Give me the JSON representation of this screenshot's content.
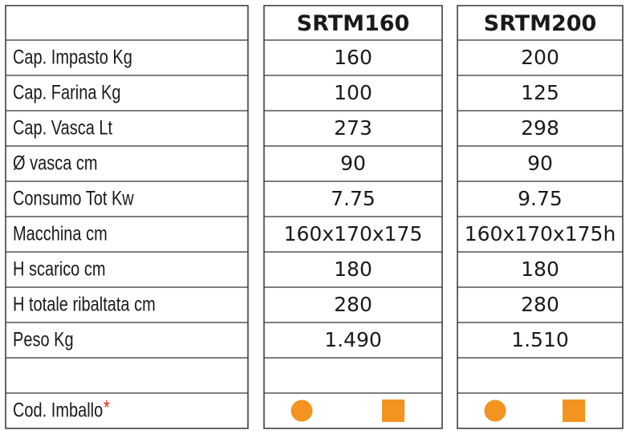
{
  "table": {
    "columns": [
      "SRTM160",
      "SRTM200"
    ],
    "rows": [
      {
        "label": "Cap. Impasto Kg",
        "values": [
          "160",
          "200"
        ]
      },
      {
        "label": "Cap. Farina Kg",
        "values": [
          "100",
          "125"
        ]
      },
      {
        "label": "Cap. Vasca Lt",
        "values": [
          "273",
          "298"
        ]
      },
      {
        "label": "Ø vasca cm",
        "values": [
          "90",
          "90"
        ]
      },
      {
        "label": "Consumo Tot Kw",
        "values": [
          "7.75",
          "9.75"
        ]
      },
      {
        "label": "Macchina cm",
        "values": [
          "160x170x175",
          "160x170x175h"
        ]
      },
      {
        "label": "H scarico cm",
        "values": [
          "180",
          "180"
        ]
      },
      {
        "label": "H totale ribaltata cm",
        "values": [
          "280",
          "280"
        ]
      },
      {
        "label": "Peso Kg",
        "values": [
          "1.490",
          "1.510"
        ]
      }
    ],
    "footer": {
      "label": "Cod. Imballo",
      "marker": "*"
    }
  }
}
